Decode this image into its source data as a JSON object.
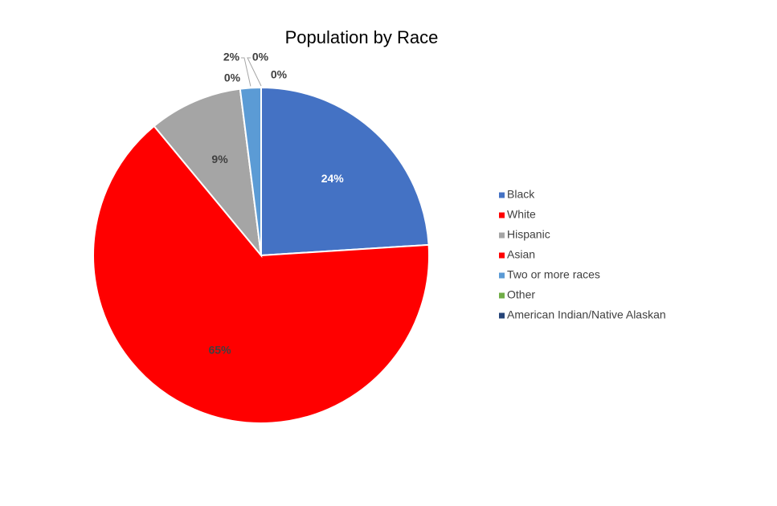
{
  "chart_data": {
    "type": "pie",
    "title": "Population by Race",
    "categories": [
      "Black",
      "White",
      "Hispanic",
      "Asian",
      "Two or more races",
      "Other",
      "American Indian/Native Alaskan"
    ],
    "values": [
      24,
      65,
      9,
      0,
      2,
      0,
      0
    ],
    "value_labels": [
      "24%",
      "65%",
      "9%",
      "0%",
      "2%",
      "0%",
      "0%"
    ],
    "colors": [
      "#4472c4",
      "#ff0000",
      "#a5a5a5",
      "#ff0000",
      "#5b9bd5",
      "#70ad47",
      "#264478"
    ],
    "legend": "right"
  }
}
